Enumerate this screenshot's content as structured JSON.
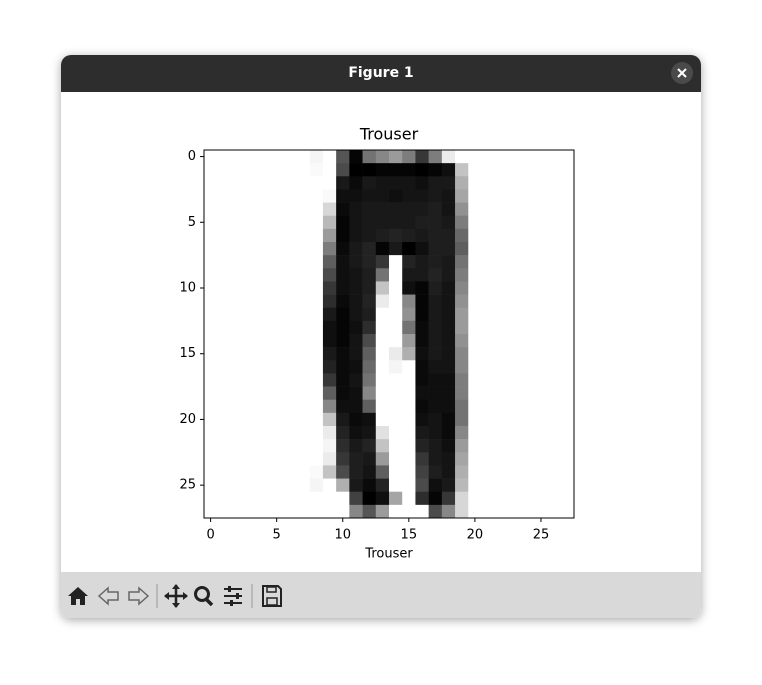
{
  "window": {
    "title": "Figure 1"
  },
  "chart_data": {
    "type": "image",
    "title": "Trouser",
    "x_label": "Trouser",
    "cmap": "gray_r",
    "clim": [
      0,
      255
    ],
    "xlim": [
      -0.5,
      27.5
    ],
    "ylim": [
      27.5,
      -0.5
    ],
    "xticks": [
      0,
      5,
      10,
      15,
      20,
      25
    ],
    "yticks": [
      0,
      5,
      10,
      15,
      20,
      25
    ],
    "values": [
      [
        0,
        0,
        0,
        0,
        0,
        0,
        0,
        0,
        10,
        0,
        170,
        250,
        140,
        120,
        100,
        130,
        200,
        130,
        20,
        0,
        0,
        0,
        0,
        0,
        0,
        0,
        0,
        0
      ],
      [
        0,
        0,
        0,
        0,
        0,
        0,
        0,
        0,
        5,
        0,
        180,
        255,
        255,
        250,
        250,
        250,
        255,
        250,
        240,
        60,
        0,
        0,
        0,
        0,
        0,
        0,
        0,
        0
      ],
      [
        0,
        0,
        0,
        0,
        0,
        0,
        0,
        0,
        0,
        0,
        230,
        245,
        230,
        235,
        235,
        235,
        240,
        230,
        230,
        80,
        0,
        0,
        0,
        0,
        0,
        0,
        0,
        0
      ],
      [
        0,
        0,
        0,
        0,
        0,
        0,
        0,
        0,
        0,
        5,
        240,
        240,
        235,
        235,
        240,
        235,
        235,
        230,
        235,
        90,
        0,
        0,
        0,
        0,
        0,
        0,
        0,
        0
      ],
      [
        0,
        0,
        0,
        0,
        0,
        0,
        0,
        0,
        0,
        40,
        245,
        235,
        230,
        230,
        230,
        230,
        230,
        225,
        235,
        110,
        0,
        0,
        0,
        0,
        0,
        0,
        0,
        0
      ],
      [
        0,
        0,
        0,
        0,
        0,
        0,
        0,
        0,
        0,
        70,
        250,
        235,
        230,
        230,
        230,
        230,
        225,
        225,
        230,
        130,
        0,
        0,
        0,
        0,
        0,
        0,
        0,
        0
      ],
      [
        0,
        0,
        0,
        0,
        0,
        0,
        0,
        0,
        0,
        100,
        250,
        235,
        230,
        225,
        220,
        225,
        230,
        225,
        225,
        150,
        0,
        0,
        0,
        0,
        0,
        0,
        0,
        0
      ],
      [
        0,
        0,
        0,
        0,
        0,
        0,
        0,
        0,
        0,
        130,
        245,
        230,
        220,
        250,
        230,
        255,
        240,
        225,
        225,
        160,
        0,
        0,
        0,
        0,
        0,
        0,
        0,
        0
      ],
      [
        0,
        0,
        0,
        0,
        0,
        0,
        0,
        0,
        0,
        160,
        240,
        230,
        220,
        200,
        0,
        220,
        230,
        225,
        230,
        140,
        0,
        0,
        0,
        0,
        0,
        0,
        0,
        0
      ],
      [
        0,
        0,
        0,
        0,
        0,
        0,
        0,
        0,
        0,
        180,
        240,
        235,
        225,
        140,
        0,
        230,
        230,
        220,
        230,
        130,
        0,
        0,
        0,
        0,
        0,
        0,
        0,
        0
      ],
      [
        0,
        0,
        0,
        0,
        0,
        0,
        0,
        0,
        0,
        200,
        240,
        235,
        225,
        60,
        0,
        240,
        250,
        225,
        235,
        120,
        0,
        0,
        0,
        0,
        0,
        0,
        0,
        0
      ],
      [
        0,
        0,
        0,
        0,
        0,
        0,
        0,
        0,
        0,
        210,
        245,
        235,
        220,
        20,
        0,
        120,
        250,
        230,
        235,
        110,
        0,
        0,
        0,
        0,
        0,
        0,
        0,
        0
      ],
      [
        0,
        0,
        0,
        0,
        0,
        0,
        0,
        0,
        0,
        230,
        250,
        235,
        225,
        0,
        0,
        110,
        250,
        230,
        235,
        100,
        0,
        0,
        0,
        0,
        0,
        0,
        0,
        0
      ],
      [
        0,
        0,
        0,
        0,
        0,
        0,
        0,
        0,
        0,
        240,
        250,
        240,
        210,
        0,
        0,
        140,
        245,
        230,
        235,
        100,
        0,
        0,
        0,
        0,
        0,
        0,
        0,
        0
      ],
      [
        0,
        0,
        0,
        0,
        0,
        0,
        0,
        0,
        0,
        240,
        250,
        235,
        180,
        0,
        0,
        100,
        245,
        230,
        235,
        110,
        0,
        0,
        0,
        0,
        0,
        0,
        0,
        0
      ],
      [
        0,
        0,
        0,
        0,
        0,
        0,
        0,
        0,
        0,
        230,
        245,
        235,
        160,
        0,
        20,
        80,
        240,
        230,
        235,
        120,
        0,
        0,
        0,
        0,
        0,
        0,
        0,
        0
      ],
      [
        0,
        0,
        0,
        0,
        0,
        0,
        0,
        0,
        0,
        220,
        245,
        240,
        150,
        0,
        10,
        0,
        245,
        235,
        235,
        120,
        0,
        0,
        0,
        0,
        0,
        0,
        0,
        0
      ],
      [
        0,
        0,
        0,
        0,
        0,
        0,
        0,
        0,
        0,
        200,
        245,
        235,
        140,
        0,
        0,
        0,
        245,
        240,
        240,
        130,
        0,
        0,
        0,
        0,
        0,
        0,
        0,
        0
      ],
      [
        0,
        0,
        0,
        0,
        0,
        0,
        0,
        0,
        0,
        160,
        245,
        240,
        120,
        0,
        0,
        0,
        240,
        240,
        240,
        130,
        0,
        0,
        0,
        0,
        0,
        0,
        0,
        0
      ],
      [
        0,
        0,
        0,
        0,
        0,
        0,
        0,
        0,
        0,
        120,
        240,
        240,
        160,
        0,
        0,
        0,
        245,
        240,
        240,
        140,
        0,
        0,
        0,
        0,
        0,
        0,
        0,
        0
      ],
      [
        0,
        0,
        0,
        0,
        0,
        0,
        0,
        0,
        0,
        60,
        230,
        245,
        240,
        0,
        0,
        0,
        240,
        235,
        245,
        140,
        0,
        0,
        0,
        0,
        0,
        0,
        0,
        0
      ],
      [
        0,
        0,
        0,
        0,
        0,
        0,
        0,
        0,
        0,
        20,
        220,
        240,
        235,
        30,
        0,
        0,
        230,
        235,
        245,
        120,
        0,
        0,
        0,
        0,
        0,
        0,
        0,
        0
      ],
      [
        0,
        0,
        0,
        0,
        0,
        0,
        0,
        0,
        0,
        10,
        210,
        230,
        220,
        60,
        0,
        0,
        220,
        230,
        240,
        100,
        0,
        0,
        0,
        0,
        0,
        0,
        0,
        0
      ],
      [
        0,
        0,
        0,
        0,
        0,
        0,
        0,
        0,
        0,
        20,
        200,
        225,
        230,
        100,
        0,
        0,
        200,
        230,
        235,
        90,
        0,
        0,
        0,
        0,
        0,
        0,
        0,
        0
      ],
      [
        0,
        0,
        0,
        0,
        0,
        0,
        0,
        0,
        5,
        60,
        180,
        225,
        235,
        160,
        0,
        0,
        190,
        225,
        235,
        80,
        0,
        0,
        0,
        0,
        0,
        0,
        0,
        0
      ],
      [
        0,
        0,
        0,
        0,
        0,
        0,
        0,
        0,
        10,
        0,
        80,
        230,
        245,
        220,
        0,
        0,
        180,
        240,
        230,
        70,
        0,
        0,
        0,
        0,
        0,
        0,
        0,
        0
      ],
      [
        0,
        0,
        0,
        0,
        0,
        0,
        0,
        0,
        0,
        0,
        0,
        190,
        255,
        240,
        90,
        0,
        210,
        250,
        200,
        40,
        0,
        0,
        0,
        0,
        0,
        0,
        0,
        0
      ],
      [
        0,
        0,
        0,
        0,
        0,
        0,
        0,
        0,
        0,
        0,
        0,
        120,
        170,
        100,
        0,
        0,
        0,
        180,
        120,
        40,
        0,
        0,
        0,
        0,
        0,
        0,
        0,
        0
      ]
    ]
  }
}
